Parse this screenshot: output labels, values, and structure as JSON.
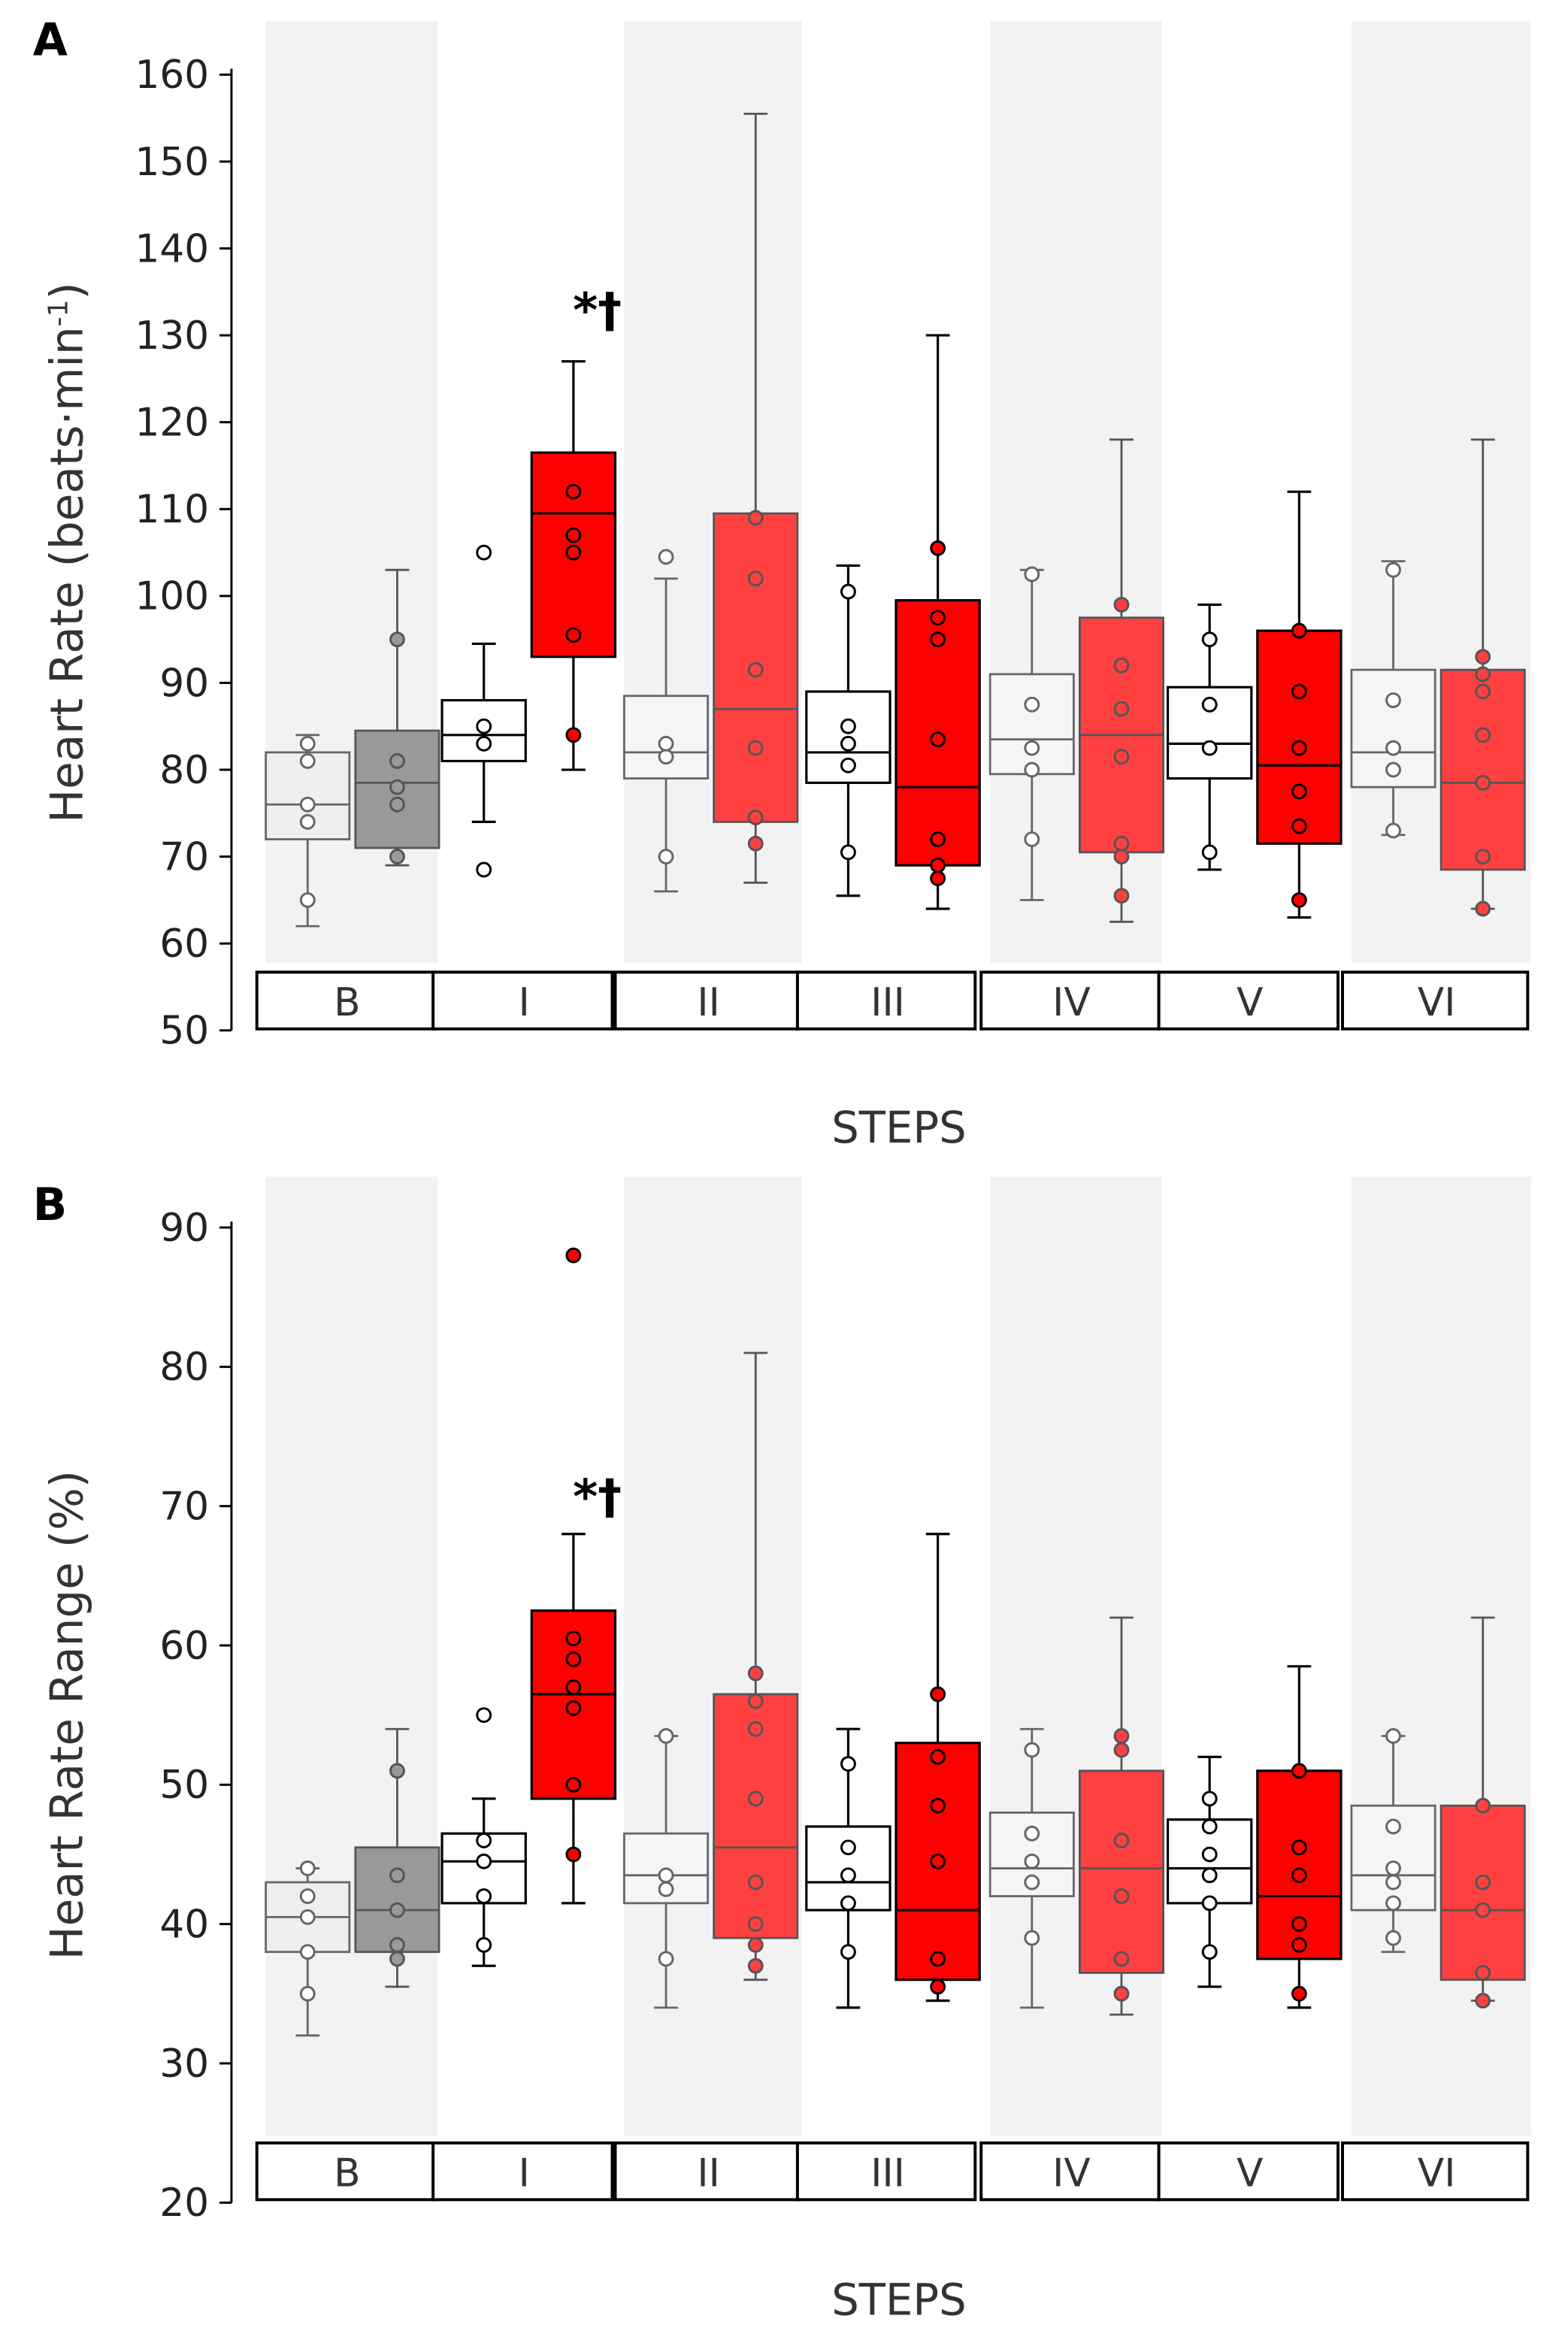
{
  "chart_data": [
    {
      "type": "box",
      "panel_label": "A",
      "ylabel": "Heart Rate (beats·min",
      "ylabel_sup": "-1",
      "ylabel_end": ")",
      "xlabel": "STEPS",
      "ylim": [
        50,
        160
      ],
      "yticks": [
        50,
        60,
        70,
        80,
        90,
        100,
        110,
        120,
        130,
        140,
        150,
        160
      ],
      "categories": [
        "B",
        "I",
        "II",
        "III",
        "IV",
        "V",
        "VI"
      ],
      "annotation": "*†",
      "annotation_category": "I",
      "boxes": [
        [
          {
            "stats": [
              62,
              72,
              76,
              82,
              84
            ],
            "points": [
              65,
              74,
              76,
              81,
              83
            ]
          },
          {
            "stats": [
              69,
              71,
              78.5,
              84.5,
              103
            ],
            "points": [
              70,
              76,
              78,
              81,
              95
            ]
          }
        ],
        [
          {
            "stats": [
              74,
              81,
              84,
              88,
              94.5
            ],
            "points": [
              68.5,
              83,
              85,
              105
            ]
          },
          {
            "stats": [
              80,
              93,
              109.5,
              116.5,
              127
            ],
            "points": [
              84,
              95.5,
              105,
              107,
              112
            ]
          }
        ],
        [
          {
            "stats": [
              66,
              79,
              82,
              88.5,
              102
            ],
            "points": [
              70,
              81.5,
              83,
              104.5
            ]
          },
          {
            "stats": [
              67,
              74,
              87,
              109.5,
              155.5
            ],
            "points": [
              71.5,
              74.5,
              82.5,
              91.5,
              102,
              109
            ]
          }
        ],
        [
          {
            "stats": [
              65.5,
              78.5,
              82,
              89,
              103.5
            ],
            "points": [
              70.5,
              80.5,
              83,
              85,
              100.5
            ]
          },
          {
            "stats": [
              64,
              69,
              78,
              99.5,
              130
            ],
            "points": [
              67.5,
              69,
              72,
              83.5,
              95,
              97.5,
              105.5
            ]
          }
        ],
        [
          {
            "stats": [
              65,
              79.5,
              83.5,
              91,
              103
            ],
            "points": [
              72,
              80,
              82.5,
              87.5,
              102.5
            ]
          },
          {
            "stats": [
              62.5,
              70.5,
              84,
              97.5,
              118
            ],
            "points": [
              65.5,
              70,
              71.5,
              81.5,
              87,
              92,
              99
            ]
          }
        ],
        [
          {
            "stats": [
              68.5,
              79,
              83,
              89.5,
              99
            ],
            "points": [
              70.5,
              82.5,
              87.5,
              95
            ]
          },
          {
            "stats": [
              63,
              71.5,
              80.5,
              96,
              112
            ],
            "points": [
              65,
              73.5,
              77.5,
              82.5,
              89,
              96
            ]
          }
        ],
        [
          {
            "stats": [
              72.5,
              78,
              82,
              91.5,
              104
            ],
            "points": [
              73,
              80,
              82.5,
              88,
              103
            ]
          },
          {
            "stats": [
              64,
              68.5,
              78.5,
              91.5,
              118
            ],
            "points": [
              64,
              70,
              78.5,
              84,
              89,
              91,
              93
            ]
          }
        ]
      ]
    },
    {
      "type": "box",
      "panel_label": "B",
      "ylabel": "Heart Rate Range (%)",
      "xlabel": "STEPS",
      "ylim": [
        20,
        90
      ],
      "yticks": [
        20,
        30,
        40,
        50,
        60,
        70,
        80,
        90
      ],
      "categories": [
        "B",
        "I",
        "II",
        "III",
        "IV",
        "V",
        "VI"
      ],
      "annotation": "*†",
      "annotation_category": "I",
      "boxes": [
        [
          {
            "stats": [
              32,
              38,
              40.5,
              43,
              44
            ],
            "points": [
              35,
              38,
              40.5,
              42,
              44
            ]
          },
          {
            "stats": [
              35.5,
              38,
              41,
              45.5,
              54
            ],
            "points": [
              37.5,
              38.5,
              41,
              43.5,
              51
            ]
          }
        ],
        [
          {
            "stats": [
              37,
              41.5,
              44.5,
              46.5,
              49
            ],
            "points": [
              38.5,
              42,
              44.5,
              46,
              55
            ]
          },
          {
            "stats": [
              41.5,
              49,
              56.5,
              62.5,
              68
            ],
            "points": [
              45,
              50,
              55.5,
              57,
              59,
              60.5,
              88
            ]
          }
        ],
        [
          {
            "stats": [
              34,
              41.5,
              43.5,
              46.5,
              53.5
            ],
            "points": [
              37.5,
              42.5,
              43.5,
              53.5
            ]
          },
          {
            "stats": [
              36,
              39,
              45.5,
              56.5,
              81
            ],
            "points": [
              37,
              38.5,
              40,
              43,
              49,
              54,
              56,
              58
            ]
          }
        ],
        [
          {
            "stats": [
              34,
              41,
              43,
              47,
              54
            ],
            "points": [
              38,
              41.5,
              43.5,
              45.5,
              51.5
            ]
          },
          {
            "stats": [
              34.5,
              36,
              41,
              53,
              68
            ],
            "points": [
              35.5,
              37.5,
              44.5,
              48.5,
              52,
              56.5
            ]
          }
        ],
        [
          {
            "stats": [
              34,
              42,
              44,
              48,
              54
            ],
            "points": [
              39,
              43,
              44.5,
              46.5,
              52.5
            ]
          },
          {
            "stats": [
              33.5,
              36.5,
              44,
              51,
              62
            ],
            "points": [
              35,
              37.5,
              42,
              46,
              52.5,
              53.5
            ]
          }
        ],
        [
          {
            "stats": [
              35.5,
              41.5,
              44,
              47.5,
              52
            ],
            "points": [
              38,
              41.5,
              43.5,
              45,
              47,
              49
            ]
          },
          {
            "stats": [
              34,
              37.5,
              42,
              51,
              58.5
            ],
            "points": [
              35,
              38.5,
              40,
              43.5,
              45.5,
              51
            ]
          }
        ],
        [
          {
            "stats": [
              38,
              41,
              43.5,
              48.5,
              53.5
            ],
            "points": [
              39,
              41.5,
              43,
              44,
              47,
              53.5
            ]
          },
          {
            "stats": [
              34.5,
              36,
              41,
              48.5,
              62
            ],
            "points": [
              34.5,
              36.5,
              41,
              43,
              48.5
            ]
          }
        ]
      ]
    }
  ],
  "colors": {
    "band": "#f2f2f2",
    "red": "#ff0000",
    "light_red": "#ff4040",
    "gray": "#999999",
    "light": "#efefef"
  }
}
